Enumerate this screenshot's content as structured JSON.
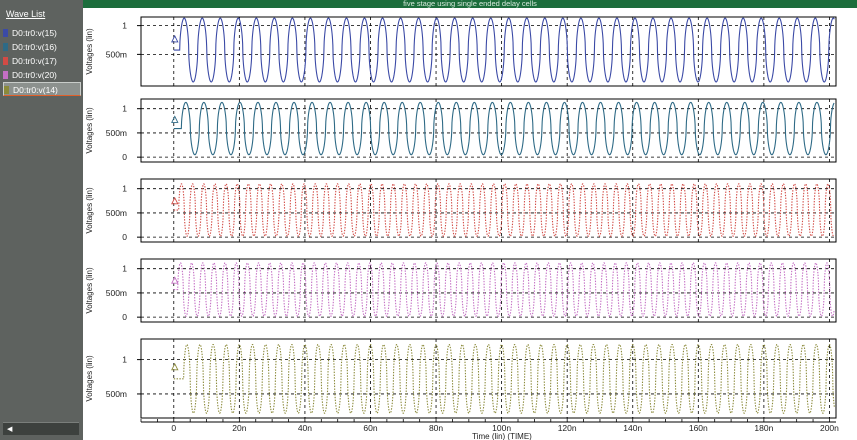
{
  "sidebar": {
    "title": "Wave List",
    "items": [
      {
        "label": "D0:tr0:v(15)",
        "color": "#3b4aa6"
      },
      {
        "label": "D0:tr0:v(16)",
        "color": "#2e6a86"
      },
      {
        "label": "D0:tr0:v(17)",
        "color": "#d24b45"
      },
      {
        "label": "D0:tr0:v(20)",
        "color": "#c46fc4"
      },
      {
        "label": "D0:tr0:v(14)",
        "color": "#8b8a3a"
      }
    ],
    "selected_index": 4
  },
  "header": {
    "title": "five stage using single ended delay cells"
  },
  "chart_data": {
    "type": "line",
    "xlabel": "Time (lin) (TIME)",
    "ylabel": "Voltages (lin)",
    "x_range": [
      -10,
      202
    ],
    "x_ticks": [
      0,
      20,
      40,
      60,
      80,
      100,
      120,
      140,
      160,
      180,
      200
    ],
    "x_tick_labels": [
      "0",
      "20n",
      "40n",
      "60n",
      "80n",
      "100n",
      "120n",
      "140n",
      "160n",
      "180n",
      "200n"
    ],
    "grid": true,
    "panels": [
      {
        "series": "D0:tr0:v(15)",
        "color": "#3b4aa6",
        "ylim": [
          -0.05,
          1.15
        ],
        "y_ticks": [
          1,
          0.5
        ],
        "y_tick_labels": [
          "1",
          "500m"
        ],
        "vmin": 0.02,
        "vmax": 1.13,
        "period_ns": 5.5,
        "start_ns": 1.8,
        "style": "solid"
      },
      {
        "series": "D0:tr0:v(16)",
        "color": "#2e6a86",
        "ylim": [
          -0.1,
          1.2
        ],
        "y_ticks": [
          1,
          0.5,
          0
        ],
        "y_tick_labels": [
          "1",
          "500m",
          "0"
        ],
        "vmin": 0.05,
        "vmax": 1.13,
        "period_ns": 5.5,
        "start_ns": 2.3,
        "style": "solid"
      },
      {
        "series": "D0:tr0:v(17)",
        "color": "#d24b45",
        "ylim": [
          -0.1,
          1.2
        ],
        "y_ticks": [
          1,
          0.5,
          0
        ],
        "y_tick_labels": [
          "1",
          "500m",
          "0"
        ],
        "vmin": 0.02,
        "vmax": 1.1,
        "period_ns": 3.4,
        "start_ns": 1.5,
        "style": "dotted"
      },
      {
        "series": "D0:tr0:v(20)",
        "color": "#c46fc4",
        "ylim": [
          -0.1,
          1.2
        ],
        "y_ticks": [
          1,
          0.5,
          0
        ],
        "y_tick_labels": [
          "1",
          "500m",
          "0"
        ],
        "vmin": 0.02,
        "vmax": 1.12,
        "period_ns": 3.4,
        "start_ns": 1.2,
        "style": "dotted"
      },
      {
        "series": "D0:tr0:v(14)",
        "color": "#8b8a3a",
        "ylim": [
          0.15,
          1.3
        ],
        "y_ticks": [
          1,
          0.5
        ],
        "y_tick_labels": [
          "1",
          "500m"
        ],
        "vmin": 0.22,
        "vmax": 1.22,
        "period_ns": 4.0,
        "start_ns": 3.0,
        "style": "dotted"
      }
    ]
  }
}
